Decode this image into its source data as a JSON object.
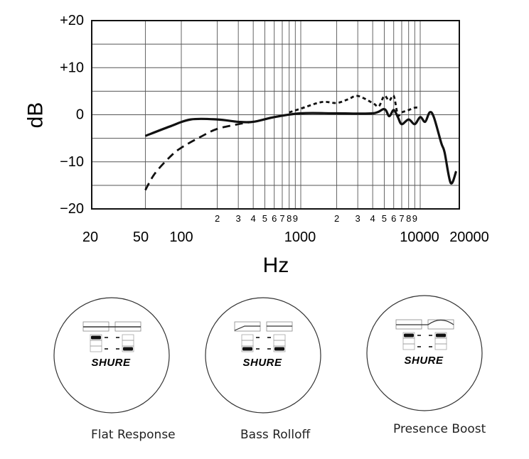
{
  "chart_data": {
    "type": "line",
    "title": "",
    "xlabel": "Hz",
    "ylabel": "dB",
    "xscale": "log",
    "xlim": [
      20,
      20000
    ],
    "ylim": [
      -20,
      20
    ],
    "grid": true,
    "y_ticks": [
      "+20",
      "+10",
      "0",
      "−10",
      "−20"
    ],
    "x_major_ticks": [
      "20",
      "50",
      "100",
      "1000",
      "10000",
      "20000"
    ],
    "x_minor_labels_group1": [
      "2",
      "3",
      "4",
      "5",
      "6",
      "7",
      "8",
      "9"
    ],
    "x_minor_labels_group2": [
      "2",
      "3",
      "4",
      "5",
      "6",
      "7",
      "8",
      "9"
    ],
    "series": [
      {
        "name": "Flat Response",
        "style": "solid",
        "x": [
          50,
          80,
          120,
          200,
          300,
          400,
          600,
          1000,
          2000,
          4000,
          5000,
          5500,
          6000,
          6500,
          7000,
          8000,
          9000,
          10000,
          11000,
          12000,
          13000,
          15000,
          16000,
          18000,
          20000
        ],
        "y": [
          -4.5,
          -2.5,
          -1,
          -1,
          -1.5,
          -1.5,
          -0.5,
          0.3,
          0.3,
          0.3,
          1.2,
          -0.3,
          1,
          -0.5,
          -2,
          -1,
          -2,
          -0.5,
          -1.5,
          0.5,
          -0.5,
          -6,
          -8,
          -14.5,
          -12
        ]
      },
      {
        "name": "Bass Rolloff",
        "style": "dashed",
        "x": [
          50,
          60,
          80,
          100,
          150,
          200,
          300,
          400
        ],
        "y": [
          -16,
          -12.5,
          -9,
          -7,
          -4.5,
          -3,
          -2,
          -1.5
        ]
      },
      {
        "name": "Presence Boost",
        "style": "dotted",
        "x": [
          800,
          1000,
          1500,
          2000,
          2500,
          3000,
          4000,
          4500,
          5000,
          5500,
          6000,
          6500,
          7000,
          8000,
          9000,
          10000
        ],
        "y": [
          0.5,
          1.3,
          2.7,
          2.5,
          3.3,
          4,
          2.5,
          1.8,
          4,
          3,
          4,
          0,
          0.5,
          1,
          1.5,
          1.5
        ]
      }
    ]
  },
  "presets": [
    {
      "label": "Flat Response",
      "brand": "SHURE"
    },
    {
      "label": "Bass Rolloff",
      "brand": "SHURE"
    },
    {
      "label": "Presence Boost",
      "brand": "SHURE"
    }
  ],
  "colors": {
    "line": "#111111",
    "grid": "#555555",
    "circle": "#333333"
  }
}
